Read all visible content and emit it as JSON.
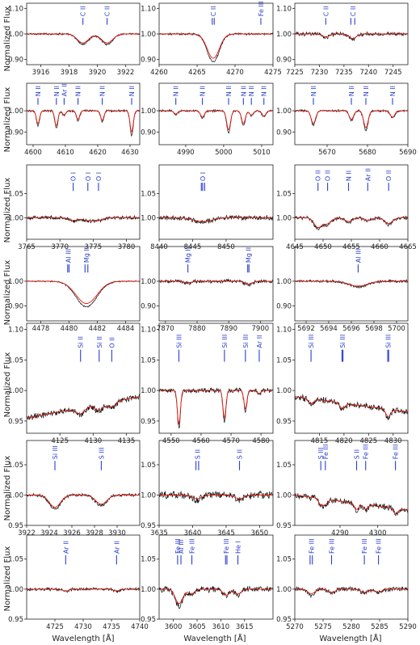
{
  "colors": {
    "observed": "#111111",
    "model": "#e8190f",
    "line_labels": "#2b3fd0"
  },
  "chart_data": {
    "type": "line",
    "ylabel": "Normalized Flux",
    "xlabel": "Wavelength [Å]",
    "rows": [
      {
        "ylim": [
          0.88,
          1.12
        ],
        "yticks": [
          0.9,
          1.0,
          1.1
        ],
        "panels": [
          {
            "xlim": [
              3915,
              3923
            ],
            "xticks": [
              3916,
              3918,
              3920,
              3922
            ],
            "lines": [
              {
                "label": "C II",
                "wl": [
                  3918.98
                ]
              },
              {
                "label": "C II",
                "wl": [
                  3920.69
                ]
              }
            ],
            "depths": [
              0.035,
              0.035
            ],
            "width": 0.4,
            "noise": 0.003
          },
          {
            "xlim": [
              4260,
              4275
            ],
            "xticks": [
              4260,
              4265,
              4270,
              4275
            ],
            "lines": [
              {
                "label": "C II",
                "wl": [
                  4267.0,
                  4267.26
                ]
              },
              {
                "label": "Fe III",
                "wl": [
                  4273.4
                ]
              }
            ],
            "depths": [
              0.095,
              0.0
            ],
            "width": 0.8,
            "noise": 0.003
          },
          {
            "xlim": [
              7225,
              7248
            ],
            "xticks": [
              7225,
              7230,
              7235,
              7240,
              7245
            ],
            "lines": [
              {
                "label": "C II",
                "wl": [
                  7231.3
                ]
              },
              {
                "label": "C II",
                "wl": [
                  7236.4,
                  7237.2
                ]
              }
            ],
            "depths": [
              0.012,
              0.018
            ],
            "width": 0.7,
            "noise": 0.006
          }
        ]
      },
      {
        "ylim": [
          0.84,
          1.13
        ],
        "yticks": [
          0.9,
          1.0
        ],
        "panels": [
          {
            "xlim": [
              4598,
              4633
            ],
            "xticks": [
              4600,
              4610,
              4620,
              4630
            ],
            "lines": [
              {
                "label": "N II",
                "wl": [
                  4601.5
                ]
              },
              {
                "label": "N II",
                "wl": [
                  4607.2
                ]
              },
              {
                "label": "Ar II",
                "wl": [
                  4609.6
                ]
              },
              {
                "label": "N II",
                "wl": [
                  4613.9
                ]
              },
              {
                "label": "N II",
                "wl": [
                  4621.4
                ]
              },
              {
                "label": "N II",
                "wl": [
                  4630.5
                ]
              }
            ],
            "depths": [
              0.06,
              0.07,
              0.02,
              0.04,
              0.045,
              0.1
            ],
            "width": 0.5,
            "noise": 0.004
          },
          {
            "xlim": [
              4983,
              5013
            ],
            "xticks": [
              4990,
              5000,
              5010
            ],
            "lines": [
              {
                "label": "N II",
                "wl": [
                  4987.4
                ]
              },
              {
                "label": "N II",
                "wl": [
                  4994.4
                ]
              },
              {
                "label": "N II",
                "wl": [
                  5001.3
                ]
              },
              {
                "label": "N II",
                "wl": [
                  5005.2
                ]
              },
              {
                "label": "N II",
                "wl": [
                  5007.3
                ]
              },
              {
                "label": "N II",
                "wl": [
                  5010.6
                ]
              }
            ],
            "depths": [
              0.015,
              0.03,
              0.09,
              0.06,
              0.02,
              0.025
            ],
            "width": 0.5,
            "noise": 0.004
          },
          {
            "xlim": [
              5662,
              5690
            ],
            "xticks": [
              5670,
              5680,
              5690
            ],
            "lines": [
              {
                "label": "N II",
                "wl": [
                  5666.6
                ]
              },
              {
                "label": "N II",
                "wl": [
                  5676.0
                ]
              },
              {
                "label": "N II",
                "wl": [
                  5679.6
                ]
              },
              {
                "label": "N II",
                "wl": [
                  5686.2
                ]
              }
            ],
            "depths": [
              0.06,
              0.04,
              0.08,
              0.03
            ],
            "width": 0.55,
            "noise": 0.004
          }
        ]
      },
      {
        "ylim": [
          0.955,
          1.11
        ],
        "yticks": [
          1.0,
          1.05
        ],
        "panels": [
          {
            "xlim": [
              3765,
              3782
            ],
            "xticks": [
              3765,
              3770,
              3775,
              3780
            ],
            "lines": [
              {
                "label": "O I",
                "wl": [
                  3772.0
                ]
              },
              {
                "label": "O I",
                "wl": [
                  3774.2
                ]
              },
              {
                "label": "O I",
                "wl": [
                  3775.8
                ]
              }
            ],
            "depths": [
              0.006,
              0.006,
              0.005
            ],
            "width": 0.7,
            "noise": 0.003
          },
          {
            "xlim": [
              8440,
              8457
            ],
            "xticks": [
              8440,
              8445,
              8450
            ],
            "lines": [
              {
                "label": "O I",
                "wl": [
                  8446.3,
                  8446.5,
                  8446.8
                ]
              }
            ],
            "depths": [
              0.008
            ],
            "width": 1.4,
            "noise": 0.004
          },
          {
            "xlim": [
              4645,
              4665
            ],
            "xticks": [
              4645,
              4650,
              4655,
              4660,
              4665
            ],
            "lines": [
              {
                "label": "O II",
                "wl": [
                  4649.1
                ]
              },
              {
                "label": "O II",
                "wl": [
                  4650.8
                ]
              },
              {
                "label": "N II",
                "wl": [
                  4654.5
                ]
              },
              {
                "label": "Ar II",
                "wl": [
                  4657.9
                ]
              },
              {
                "label": "O II",
                "wl": [
                  4661.6
                ]
              }
            ],
            "depths": [
              0.02,
              0.012,
              0.008,
              0.006,
              0.012
            ],
            "width": 0.7,
            "noise": 0.003
          }
        ]
      },
      {
        "ylim": [
          0.84,
          1.14
        ],
        "yticks": [
          0.9,
          1.0
        ],
        "panels": [
          {
            "xlim": [
              4477,
              4485
            ],
            "xticks": [
              4478,
              4480,
              4482,
              4484
            ],
            "lines": [
              {
                "label": "Al III",
                "wl": [
                  4479.9,
                  4480.0
                ]
              },
              {
                "label": "Mg II",
                "wl": [
                  4481.13,
                  4481.33
                ]
              }
            ],
            "depths": [
              0.0,
              0.09
            ],
            "width": 0.75,
            "noise": 0.002
          },
          {
            "xlim": [
              7868,
              7904
            ],
            "xticks": [
              7870,
              7880,
              7890,
              7900
            ],
            "lines": [
              {
                "label": "Mg II",
                "wl": [
                  7877.1
                ]
              },
              {
                "label": "Mg II",
                "wl": [
                  7896.0,
                  7896.4
                ]
              }
            ],
            "depths": [
              0.006,
              0.012
            ],
            "width": 1.2,
            "noise": 0.006
          },
          {
            "xlim": [
              5691,
              5701
            ],
            "xticks": [
              5692,
              5694,
              5696,
              5698,
              5700
            ],
            "lines": [
              {
                "label": "Al III",
                "wl": [
                  5696.6
                ]
              }
            ],
            "depths": [
              0.02
            ],
            "width": 0.8,
            "noise": 0.004
          }
        ]
      },
      {
        "ylim": [
          0.93,
          1.11
        ],
        "yticks": [
          0.95,
          1.0,
          1.05,
          1.1
        ],
        "panels": [
          {
            "xlim": [
              4120,
              4137
            ],
            "xticks": [
              4125,
              4130,
              4135
            ],
            "lines": [
              {
                "label": "Si II",
                "wl": [
                  4128.1
                ]
              },
              {
                "label": "Si II",
                "wl": [
                  4130.9
                ]
              },
              {
                "label": "O II",
                "wl": [
                  4132.8
                ]
              }
            ],
            "depths": [
              0.01,
              0.01,
              0.008
            ],
            "width": 0.6,
            "noise": 0.004,
            "tilt": [
              0.955,
              0.99
            ]
          },
          {
            "xlim": [
              4546,
              4584
            ],
            "xticks": [
              4550,
              4560,
              4570,
              4580
            ],
            "lines": [
              {
                "label": "Si III",
                "wl": [
                  4552.6
                ]
              },
              {
                "label": "Si III",
                "wl": [
                  4567.8
                ]
              },
              {
                "label": "Si III",
                "wl": [
                  4574.8
                ]
              },
              {
                "label": "Ar II",
                "wl": [
                  4579.4
                ]
              }
            ],
            "depths": [
              0.055,
              0.045,
              0.03,
              0.005
            ],
            "width": 0.5,
            "noise": 0.003
          },
          {
            "xlim": [
              4810,
              4833
            ],
            "xticks": [
              4815,
              4820,
              4825,
              4830
            ],
            "lines": [
              {
                "label": "Si III",
                "wl": [
                  4813.3
                ]
              },
              {
                "label": "Si III",
                "wl": [
                  4819.6,
                  4819.8
                ]
              },
              {
                "label": "Si III",
                "wl": [
                  4828.9,
                  4829.1
                ]
              }
            ],
            "depths": [
              0.008,
              0.01,
              0.012
            ],
            "width": 0.5,
            "noise": 0.004,
            "tilt": [
              0.99,
              0.965
            ]
          }
        ]
      },
      {
        "ylim": [
          0.95,
          1.09
        ],
        "yticks": [
          0.95,
          1.0,
          1.05
        ],
        "panels": [
          {
            "xlim": [
              3922,
              3932
            ],
            "xticks": [
              3922,
              3924,
              3926,
              3928,
              3930
            ],
            "lines": [
              {
                "label": "Si III",
                "wl": [
                  3924.5
                ]
              },
              {
                "label": "S III",
                "wl": [
                  3928.6
                ]
              }
            ],
            "depths": [
              0.02,
              0.015
            ],
            "width": 0.5,
            "noise": 0.002
          },
          {
            "xlim": [
              3635,
              3652
            ],
            "xticks": [
              3635,
              3640,
              3645,
              3650
            ],
            "lines": [
              {
                "label": "S II",
                "wl": [
                  3640.5,
                  3640.9
                ]
              },
              {
                "label": "S II",
                "wl": [
                  3647.0
                ]
              }
            ],
            "depths": [
              0.006,
              0.006
            ],
            "width": 0.7,
            "noise": 0.005
          },
          {
            "xlim": [
              4278,
              4308
            ],
            "xticks": [
              4290,
              4300
            ],
            "lines": [
              {
                "label": "S III",
                "wl": [
                  4284.9
                ]
              },
              {
                "label": "Fe III",
                "wl": [
                  4286.1
                ]
              },
              {
                "label": "S II",
                "wl": [
                  4294.4
                ]
              },
              {
                "label": "Fe III",
                "wl": [
                  4296.8
                ]
              },
              {
                "label": "Fe III",
                "wl": [
                  4304.7
                ]
              }
            ],
            "depths": [
              0.01,
              0.008,
              0.01,
              0.008,
              0.008
            ],
            "width": 0.6,
            "noise": 0.004,
            "tilt": [
              1.0,
              0.975
            ]
          }
        ]
      },
      {
        "ylim": [
          0.95,
          1.09
        ],
        "yticks": [
          0.95,
          1.0,
          1.05
        ],
        "panels": [
          {
            "xlim": [
              4720,
              4740
            ],
            "xticks": [
              4725,
              4730,
              4735,
              4740
            ],
            "lines": [
              {
                "label": "Ar II",
                "wl": [
                  4726.9
                ]
              },
              {
                "label": "Ar II",
                "wl": [
                  4735.9
                ]
              }
            ],
            "depths": [
              0.003,
              0.003
            ],
            "width": 0.6,
            "noise": 0.002
          },
          {
            "xlim": [
              3597,
              3621
            ],
            "xticks": [
              3600,
              3605,
              3610,
              3615
            ],
            "lines": [
              {
                "label": "Fe III",
                "wl": [
                  3600.9
                ]
              },
              {
                "label": "Al III",
                "wl": [
                  3601.6
                ]
              },
              {
                "label": "Fe III",
                "wl": [
                  3603.9
                ]
              },
              {
                "label": "Fe III",
                "wl": [
                  3611.0,
                  3611.3
                ]
              },
              {
                "label": "He I",
                "wl": [
                  3613.6
                ]
              }
            ],
            "depths": [
              0.015,
              0.012,
              0.008,
              0.01,
              0.008
            ],
            "width": 0.7,
            "noise": 0.004
          },
          {
            "xlim": [
              5270,
              5290
            ],
            "xticks": [
              5270,
              5275,
              5280,
              5285,
              5290
            ],
            "lines": [
              {
                "label": "Fe III",
                "wl": [
                  5272.7,
                  5273.1
                ]
              },
              {
                "label": "Fe III",
                "wl": [
                  5276.5
                ]
              },
              {
                "label": "Fe III",
                "wl": [
                  5282.3
                ]
              },
              {
                "label": "Fe III",
                "wl": [
                  5284.8
                ]
              }
            ],
            "depths": [
              0.008,
              0.006,
              0.006,
              0.005
            ],
            "width": 0.6,
            "noise": 0.003
          }
        ]
      }
    ]
  }
}
